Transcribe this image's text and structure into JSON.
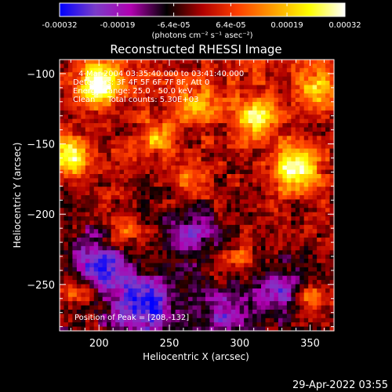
{
  "colorbar": {
    "tick_labels": [
      "-0.00032",
      "-0.00019",
      "-6.4e-05",
      "6.4e-05",
      "0.00019",
      "0.00032"
    ],
    "tick_values": [
      -0.00032,
      -0.00019,
      -6.4e-05,
      6.4e-05,
      0.00019,
      0.00032
    ],
    "range": [
      -0.00032,
      0.00032
    ],
    "units_label": "(photons cm⁻² s⁻¹ asec⁻²)",
    "colormap_stops": [
      "#0000ff",
      "#7a3cc8",
      "#b000b0",
      "#000000",
      "#b00000",
      "#ff4000",
      "#ffa000",
      "#ffff00",
      "#ffffff"
    ]
  },
  "chart_data": {
    "type": "heatmap",
    "title": "Reconstructed RHESSI Image",
    "xlabel": "Heliocentric X (arcsec)",
    "ylabel": "Heliocentric Y (arcsec)",
    "xlim": [
      172,
      367
    ],
    "ylim": [
      -283,
      -90
    ],
    "x_ticks": [
      200,
      250,
      300,
      350
    ],
    "y_ticks": [
      -100,
      -150,
      -200,
      -250
    ],
    "x_tick_labels": [
      "200",
      "250",
      "300",
      "350"
    ],
    "y_tick_labels": [
      "−100",
      "−150",
      "−200",
      "−250"
    ],
    "annotations": [
      "4-Mar-2004 03:35:40.000 to 03:41:40.000",
      "Detectors: 3F 4F 5F 6F 7F 8F, Att 0",
      "Energy Range: 25.0 - 50.0 keV",
      "Clean     Total counts: 5.30E+03"
    ],
    "peak_label": "Position of Peak = [208,-132]",
    "peak_position": [
      208,
      -132
    ],
    "field_description": "bright regions upper-left and right, dark purple/blue lower-left",
    "sources": [
      {
        "x": 200,
        "y": -108,
        "peak": 1.0,
        "sigma": 10
      },
      {
        "x": 178,
        "y": -160,
        "peak": 0.95,
        "sigma": 9
      },
      {
        "x": 340,
        "y": -168,
        "peak": 1.0,
        "sigma": 11
      },
      {
        "x": 312,
        "y": -130,
        "peak": 0.75,
        "sigma": 10
      },
      {
        "x": 270,
        "y": -122,
        "peak": 0.55,
        "sigma": 9
      },
      {
        "x": 265,
        "y": -175,
        "peak": 0.45,
        "sigma": 8
      },
      {
        "x": 355,
        "y": -110,
        "peak": 0.55,
        "sigma": 9
      },
      {
        "x": 350,
        "y": -260,
        "peak": 0.6,
        "sigma": 8
      },
      {
        "x": 215,
        "y": -215,
        "peak": 0.45,
        "sigma": 8
      },
      {
        "x": 185,
        "y": -255,
        "peak": 0.5,
        "sigma": 8
      },
      {
        "x": 300,
        "y": -230,
        "peak": 0.35,
        "sigma": 8
      },
      {
        "x": 240,
        "y": -145,
        "peak": 0.5,
        "sigma": 8
      },
      {
        "x": 232,
        "y": -265,
        "peak": -0.9,
        "sigma": 14
      },
      {
        "x": 200,
        "y": -235,
        "peak": -0.8,
        "sigma": 14
      },
      {
        "x": 265,
        "y": -215,
        "peak": -0.5,
        "sigma": 13
      },
      {
        "x": 330,
        "y": -255,
        "peak": -0.55,
        "sigma": 12
      },
      {
        "x": 290,
        "y": -270,
        "peak": -0.55,
        "sigma": 12
      }
    ]
  },
  "timestamp": "29-Apr-2022 03:55"
}
